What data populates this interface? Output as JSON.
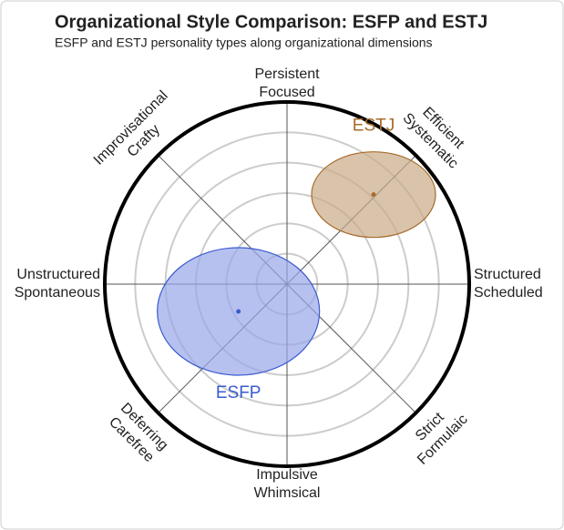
{
  "chart_data": {
    "type": "ellipse-scatter",
    "title": "Organizational Style Comparison: ESFP and ESTJ",
    "subtitle": "ESFP and ESTJ personality types along organizational dimensions",
    "xlim": [
      -6,
      6
    ],
    "ylim": [
      -6,
      6
    ],
    "rticks": [
      1,
      2,
      3,
      4,
      5
    ],
    "grid": true,
    "axis_labels": [
      [
        "Persistent",
        "Focused"
      ],
      [
        "Efficient",
        "Systematic"
      ],
      [
        "Structured",
        "Scheduled"
      ],
      [
        "Strict",
        "Formulaic"
      ],
      [
        "Impulsive",
        "Whimsical"
      ],
      [
        "Deferring",
        "Carefree"
      ],
      [
        "Unstructured",
        "Spontaneous"
      ],
      [
        "Improvisational",
        "Crafty"
      ]
    ],
    "series": [
      {
        "name": "ESFP",
        "color": "#3a5bd0",
        "fill": "#98a6ea",
        "x": -1.6,
        "y": -0.9,
        "rx": 2.67,
        "ry": 2.1
      },
      {
        "name": "ESTJ",
        "color": "#a86b2a",
        "fill": "#c9ab88",
        "x": 2.85,
        "y": 2.95,
        "rx": 2.04,
        "ry": 1.41
      }
    ]
  }
}
